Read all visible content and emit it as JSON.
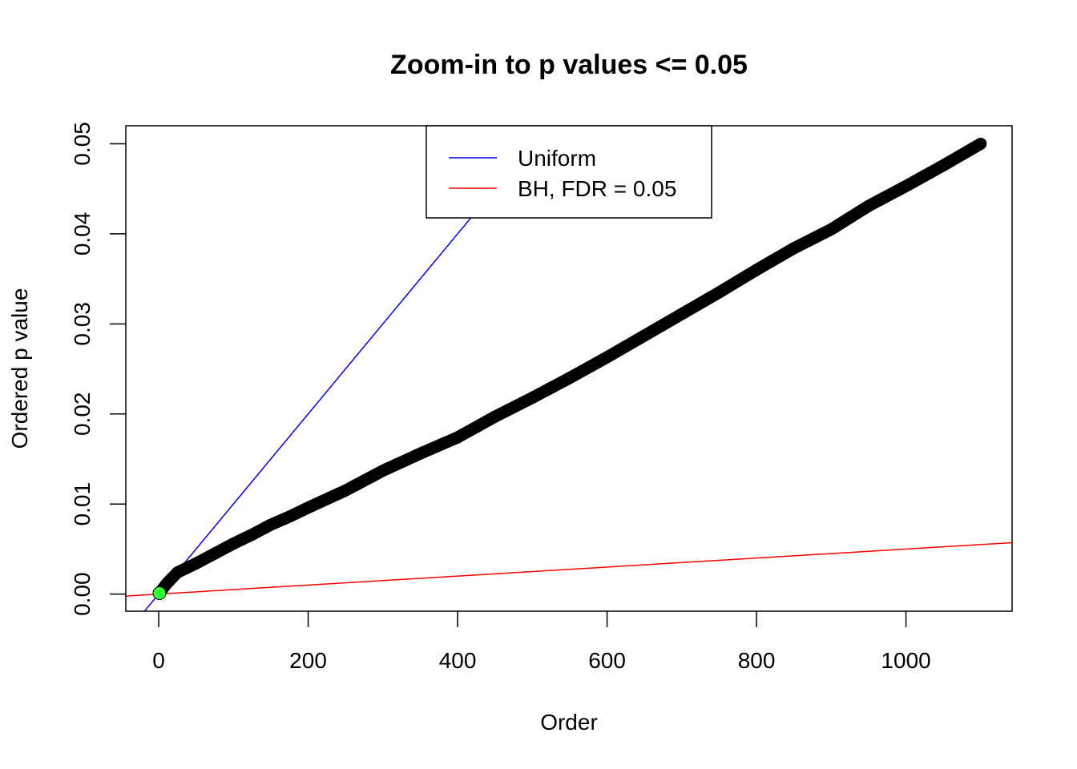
{
  "chart_data": {
    "type": "scatter",
    "title": "Zoom-in to p values <= 0.05",
    "xlabel": "Order",
    "ylabel": "Ordered p value",
    "xlim": [
      -44,
      1142
    ],
    "ylim": [
      -0.0019,
      0.052
    ],
    "x_ticks": [
      0,
      200,
      400,
      600,
      800,
      1000
    ],
    "y_ticks": [
      0.0,
      0.01,
      0.02,
      0.03,
      0.04,
      0.05
    ],
    "x_tick_labels": [
      "0",
      "200",
      "400",
      "600",
      "800",
      "1000"
    ],
    "y_tick_labels": [
      "0.00",
      "0.01",
      "0.02",
      "0.03",
      "0.04",
      "0.05"
    ],
    "grid": false,
    "legend_position": "top-center",
    "series": [
      {
        "name": "",
        "kind": "points",
        "color": "#000000",
        "x": [
          1,
          10,
          25,
          50,
          75,
          100,
          125,
          150,
          175,
          200,
          250,
          300,
          350,
          400,
          450,
          500,
          550,
          600,
          650,
          700,
          750,
          800,
          850,
          900,
          950,
          1000,
          1050,
          1100
        ],
        "y": [
          0.0001,
          0.0011,
          0.0024,
          0.0034,
          0.0045,
          0.0056,
          0.0066,
          0.0077,
          0.0086,
          0.0096,
          0.0115,
          0.0137,
          0.0156,
          0.0174,
          0.0197,
          0.0218,
          0.024,
          0.0263,
          0.0287,
          0.0311,
          0.0335,
          0.036,
          0.0384,
          0.0405,
          0.0431,
          0.0453,
          0.0476,
          0.05
        ]
      },
      {
        "name": "",
        "kind": "highlight-point",
        "color": "#33ff33",
        "x": [
          1
        ],
        "y": [
          0.0001
        ]
      },
      {
        "name": "Uniform",
        "kind": "abline",
        "color": "#0000ff",
        "intercept": 0,
        "slope": 0.0001
      },
      {
        "name": "BH, FDR = 0.05",
        "kind": "abline",
        "color": "#ff0000",
        "intercept": 0,
        "slope": 5e-06
      }
    ],
    "legend": [
      {
        "label": "Uniform",
        "color": "#0000ff"
      },
      {
        "label": "BH, FDR = 0.05",
        "color": "#ff0000"
      }
    ]
  }
}
